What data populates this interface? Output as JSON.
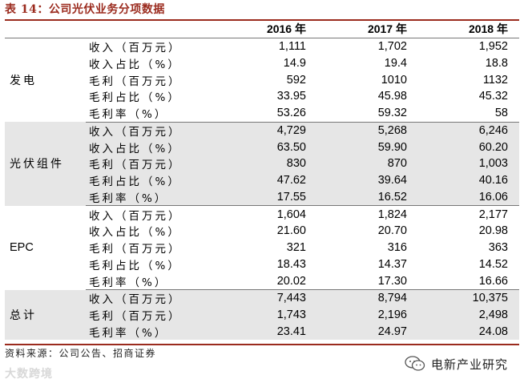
{
  "title": "表 14：公司光伏业务分项数据",
  "header": {
    "col0": "",
    "col1": "",
    "years": [
      "2016 年",
      "2017 年",
      "2018 年"
    ]
  },
  "groups": [
    {
      "name": "发电",
      "rows": [
        {
          "metric": "收入（百万元）",
          "values": [
            "1,111",
            "1,702",
            "1,952"
          ]
        },
        {
          "metric": "收入占比（%）",
          "values": [
            "14.9",
            "19.4",
            "18.8"
          ]
        },
        {
          "metric": "毛利（百万元）",
          "values": [
            "592",
            "1010",
            "1132"
          ]
        },
        {
          "metric": "毛利占比（%）",
          "values": [
            "33.95",
            "45.98",
            "45.32"
          ]
        },
        {
          "metric": "毛利率（%）",
          "values": [
            "53.26",
            "59.32",
            "58"
          ]
        }
      ]
    },
    {
      "name": "光伏组件",
      "rows": [
        {
          "metric": "收入（百万元）",
          "values": [
            "4,729",
            "5,268",
            "6,246"
          ]
        },
        {
          "metric": "收入占比（%）",
          "values": [
            "63.50",
            "59.90",
            "60.20"
          ]
        },
        {
          "metric": "毛利（百万元）",
          "values": [
            "830",
            "870",
            "1,003"
          ]
        },
        {
          "metric": "毛利占比（%）",
          "values": [
            "47.62",
            "39.64",
            "40.16"
          ]
        },
        {
          "metric": "毛利率（%）",
          "values": [
            "17.55",
            "16.52",
            "16.06"
          ]
        }
      ]
    },
    {
      "name": "EPC",
      "rows": [
        {
          "metric": "收入（百万元）",
          "values": [
            "1,604",
            "1,824",
            "2,177"
          ]
        },
        {
          "metric": "收入占比（%）",
          "values": [
            "21.60",
            "20.70",
            "20.98"
          ]
        },
        {
          "metric": "毛利（百万元）",
          "values": [
            "321",
            "316",
            "363"
          ]
        },
        {
          "metric": "毛利占比（%）",
          "values": [
            "18.43",
            "14.37",
            "14.52"
          ]
        },
        {
          "metric": "毛利率（%）",
          "values": [
            "20.02",
            "17.30",
            "16.66"
          ]
        }
      ]
    },
    {
      "name": "总计",
      "rows": [
        {
          "metric": "收入（百万元）",
          "values": [
            "7,443",
            "8,794",
            "10,375"
          ]
        },
        {
          "metric": "毛利（百万元）",
          "values": [
            "1,743",
            "2,196",
            "2,498"
          ]
        },
        {
          "metric": "毛利率（%）",
          "values": [
            "23.41",
            "24.97",
            "24.08"
          ]
        }
      ]
    }
  ],
  "source": "资料来源：公司公告、招商证券",
  "watermark_left": "大数跨境",
  "watermark_right": "电新产业研究",
  "colors": {
    "accent": "#9b2b1e",
    "shade": "#e6e6e6"
  }
}
